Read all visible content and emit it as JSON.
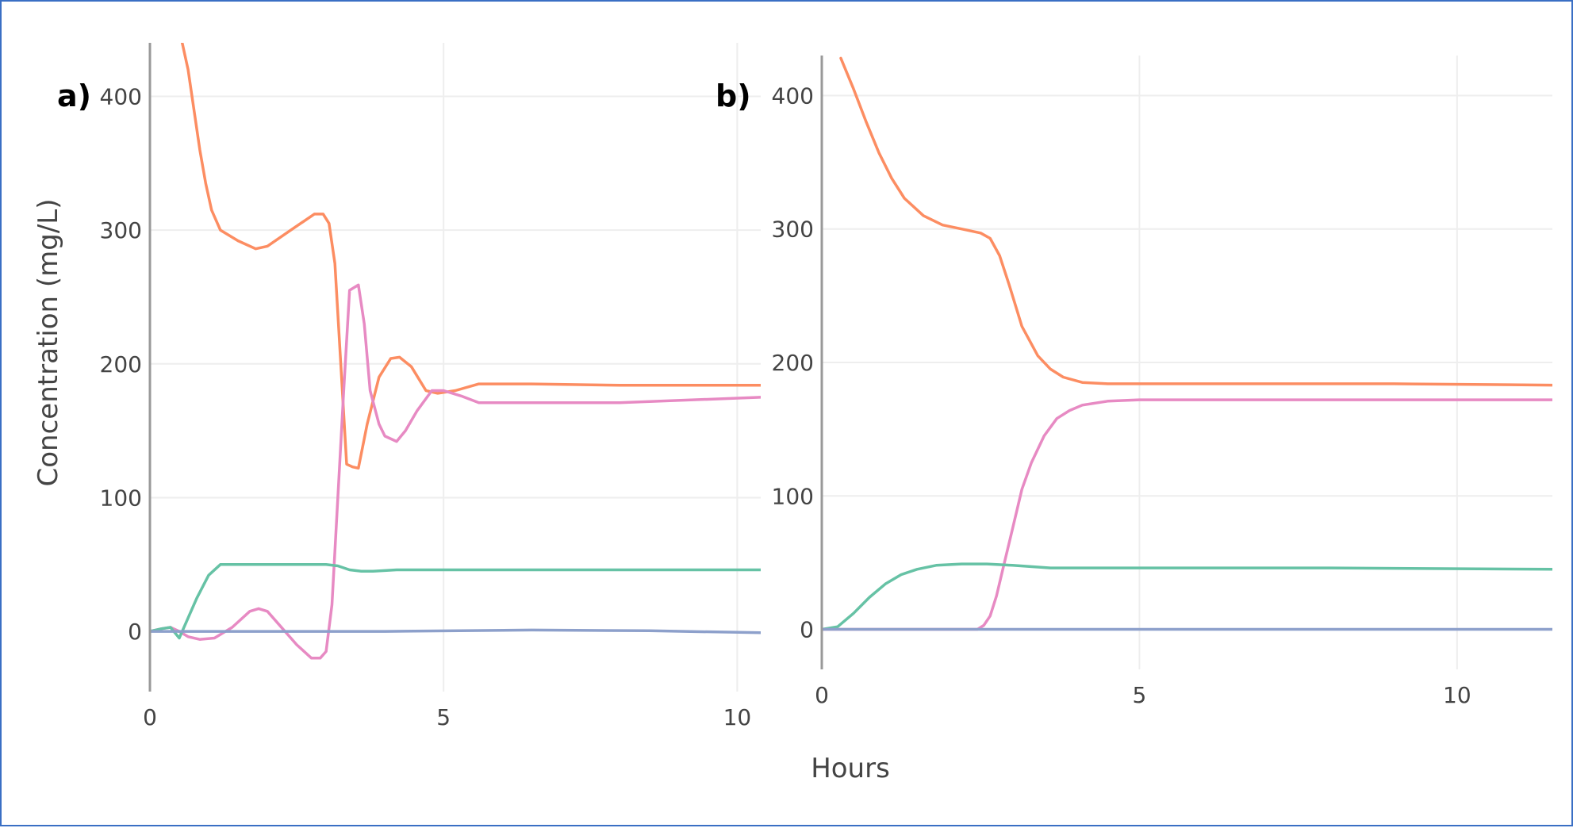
{
  "chart_data": [
    {
      "type": "line",
      "panel_label": "a)",
      "ylabel": "Concentration (mg/L)",
      "xlabel": "",
      "xlim": [
        0,
        10.4
      ],
      "ylim": [
        -45,
        440
      ],
      "xticks": [
        0,
        5,
        10
      ],
      "yticks": [
        0,
        100,
        200,
        300,
        400
      ],
      "series": [
        {
          "color": "#fc8d62",
          "x": [
            0.55,
            0.65,
            0.75,
            0.85,
            0.95,
            1.05,
            1.2,
            1.5,
            1.8,
            2.0,
            2.4,
            2.8,
            2.95,
            3.05,
            3.15,
            3.25,
            3.35,
            3.45,
            3.55,
            3.7,
            3.9,
            4.1,
            4.25,
            4.45,
            4.7,
            4.9,
            5.2,
            5.6,
            6.5,
            8,
            10.4
          ],
          "y": [
            440,
            420,
            390,
            360,
            335,
            315,
            300,
            292,
            286,
            288,
            300,
            312,
            312,
            305,
            275,
            200,
            125,
            123,
            122,
            155,
            190,
            204,
            205,
            198,
            180,
            178,
            180,
            185,
            185,
            184,
            184
          ]
        },
        {
          "color": "#e78ac3",
          "x": [
            0,
            0.2,
            0.35,
            0.5,
            0.65,
            0.85,
            1.1,
            1.4,
            1.7,
            1.85,
            2.0,
            2.2,
            2.5,
            2.75,
            2.9,
            3.0,
            3.1,
            3.2,
            3.3,
            3.4,
            3.55,
            3.65,
            3.75,
            3.9,
            4.0,
            4.2,
            4.35,
            4.55,
            4.8,
            5.0,
            5.3,
            5.6,
            6.5,
            8,
            10.4
          ],
          "y": [
            0,
            2,
            3,
            0,
            -4,
            -6,
            -5,
            3,
            15,
            17,
            15,
            5,
            -10,
            -20,
            -20,
            -15,
            20,
            100,
            180,
            255,
            259,
            230,
            180,
            155,
            146,
            142,
            150,
            165,
            180,
            180,
            176,
            171,
            171,
            171,
            175
          ]
        },
        {
          "color": "#66c2a5",
          "x": [
            0,
            0.2,
            0.35,
            0.5,
            0.65,
            0.8,
            1.0,
            1.2,
            1.5,
            2.0,
            2.5,
            3.0,
            3.2,
            3.4,
            3.6,
            3.8,
            4.2,
            6,
            8,
            10.4
          ],
          "y": [
            0,
            2,
            3,
            -5,
            10,
            25,
            42,
            50,
            50,
            50,
            50,
            50,
            49,
            46,
            45,
            45,
            46,
            46,
            46,
            46
          ]
        },
        {
          "color": "#8da0cb",
          "x": [
            0,
            2,
            4,
            6.5,
            8.5,
            10.4
          ],
          "y": [
            0,
            0,
            0,
            1,
            0.5,
            -1
          ]
        }
      ]
    },
    {
      "type": "line",
      "panel_label": "b)",
      "ylabel": "",
      "xlabel": "Hours",
      "xlim": [
        0,
        11.5
      ],
      "ylim": [
        -30,
        430
      ],
      "xticks": [
        0,
        5,
        10
      ],
      "yticks": [
        0,
        100,
        200,
        300,
        400
      ],
      "series": [
        {
          "color": "#fc8d62",
          "x": [
            0.3,
            0.5,
            0.7,
            0.9,
            1.1,
            1.3,
            1.6,
            1.9,
            2.2,
            2.5,
            2.65,
            2.8,
            2.95,
            3.15,
            3.4,
            3.6,
            3.8,
            4.1,
            4.5,
            5,
            7,
            9,
            11.5
          ],
          "y": [
            428,
            405,
            380,
            357,
            338,
            323,
            310,
            303,
            300,
            297,
            293,
            280,
            258,
            227,
            205,
            195,
            189,
            185,
            184,
            184,
            184,
            184,
            183
          ]
        },
        {
          "color": "#e78ac3",
          "x": [
            0,
            1,
            2,
            2.45,
            2.55,
            2.65,
            2.75,
            2.85,
            3.0,
            3.15,
            3.3,
            3.5,
            3.7,
            3.9,
            4.1,
            4.5,
            5,
            7,
            9,
            11.5
          ],
          "y": [
            0,
            0,
            0,
            0,
            3,
            10,
            25,
            45,
            75,
            105,
            125,
            145,
            158,
            164,
            168,
            171,
            172,
            172,
            172,
            172
          ]
        },
        {
          "color": "#66c2a5",
          "x": [
            0,
            0.25,
            0.5,
            0.75,
            1.0,
            1.25,
            1.5,
            1.8,
            2.2,
            2.6,
            3.0,
            3.6,
            5,
            8,
            11.5
          ],
          "y": [
            0,
            2,
            12,
            24,
            34,
            41,
            45,
            48,
            49,
            49,
            48,
            46,
            46,
            46,
            45
          ]
        },
        {
          "color": "#8da0cb",
          "x": [
            0,
            4,
            8,
            11.5
          ],
          "y": [
            0,
            0,
            0,
            0
          ]
        }
      ]
    }
  ]
}
